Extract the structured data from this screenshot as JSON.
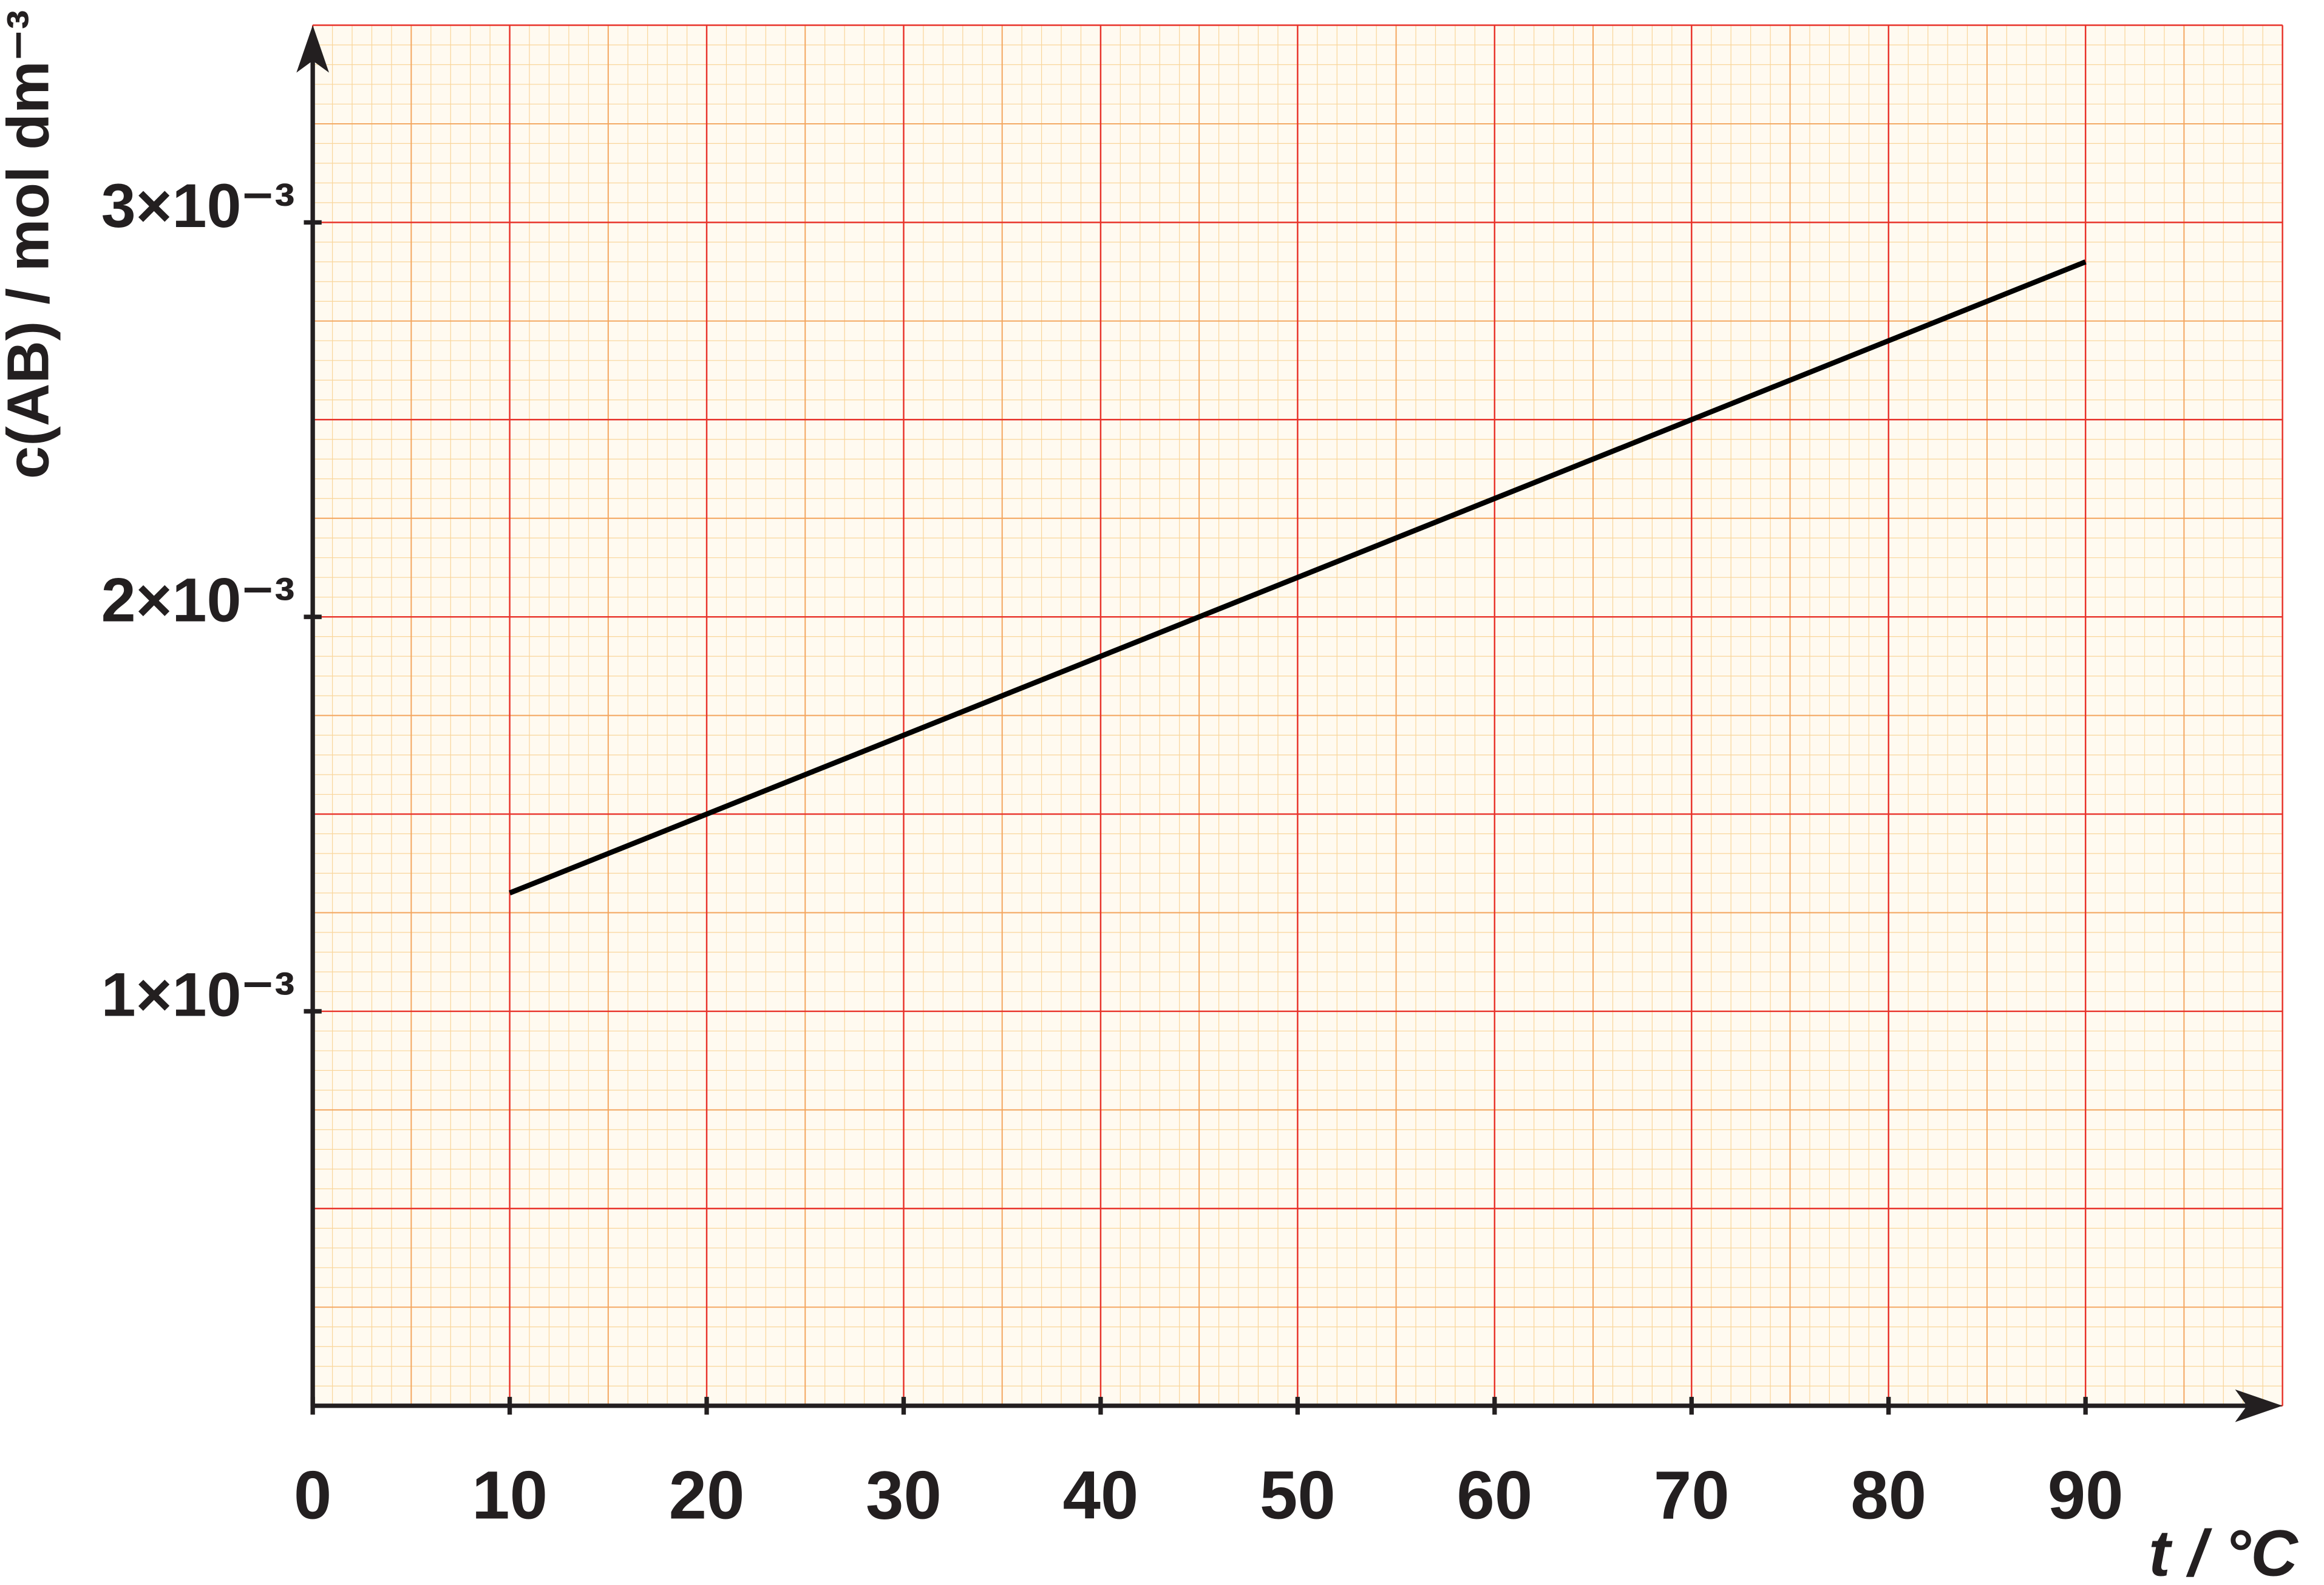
{
  "chart_data": {
    "type": "line",
    "x_label": "t / °C",
    "y_label": "c(AB) / mol dm⁻³",
    "x": [
      10,
      90
    ],
    "series": [
      {
        "name": "c(AB)",
        "color": "#000000",
        "values": [
          0.0013,
          0.0029
        ]
      }
    ],
    "xlim": [
      0,
      100
    ],
    "ylim": [
      0,
      0.0035
    ],
    "xticks": [
      0,
      10,
      20,
      30,
      40,
      50,
      60,
      70,
      80,
      90
    ],
    "yticks": [
      {
        "value": 0.001,
        "label": "1×10⁻³"
      },
      {
        "value": 0.002,
        "label": "2×10⁻³"
      },
      {
        "value": 0.003,
        "label": "3×10⁻³"
      }
    ],
    "grid": true
  }
}
